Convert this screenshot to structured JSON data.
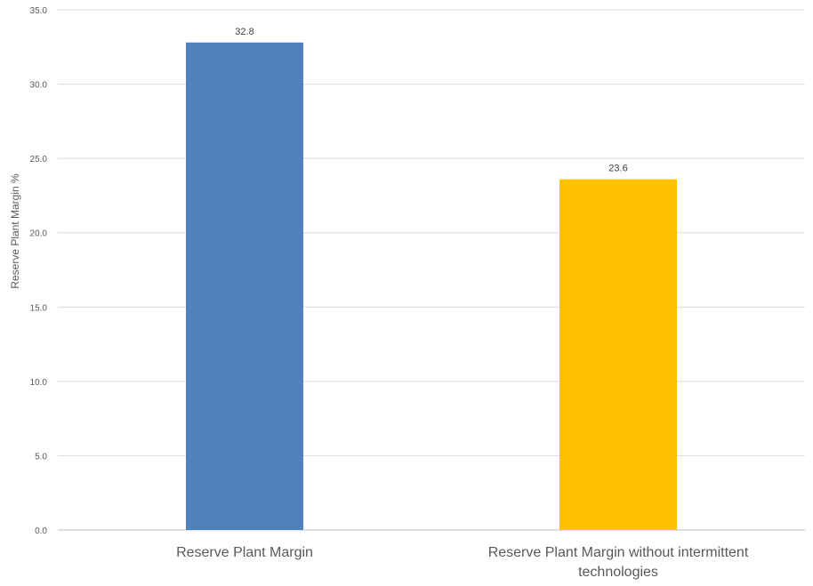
{
  "chart_data": {
    "type": "bar",
    "title": "",
    "xlabel": "",
    "ylabel": "Reserve Plant Margin %",
    "ylim": [
      0,
      35
    ],
    "yticks": [
      "0.0",
      "5.0",
      "10.0",
      "15.0",
      "20.0",
      "25.0",
      "30.0",
      "35.0"
    ],
    "ytick_values": [
      0,
      5,
      10,
      15,
      20,
      25,
      30,
      35
    ],
    "grid": true,
    "legend": "none",
    "categories": [
      [
        "Reserve Plant Margin"
      ],
      [
        "Reserve Plant Margin without intermittent",
        "technologies"
      ]
    ],
    "values": [
      32.8,
      23.6
    ],
    "data_labels": [
      "32.8",
      "23.6"
    ],
    "colors": [
      "#4f81bd",
      "#ffc000"
    ]
  }
}
